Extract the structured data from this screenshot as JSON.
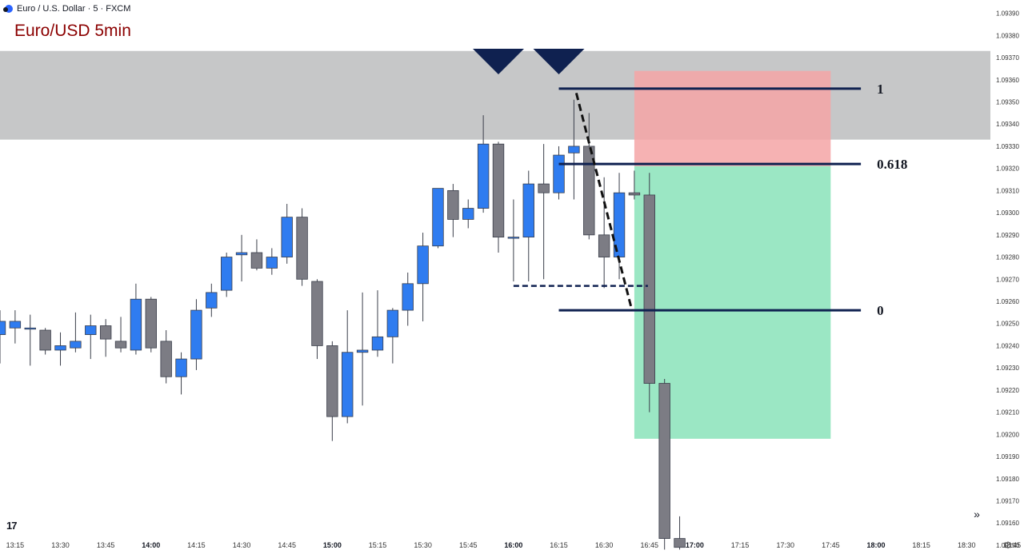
{
  "header": {
    "symbol": "Euro / U.S. Dollar · 5 · FXCM"
  },
  "title": "Euro/USD 5min",
  "chart_data": {
    "type": "candlestick",
    "x_ticks": [
      "13:15",
      "13:30",
      "13:45",
      "14:00",
      "14:15",
      "14:30",
      "14:45",
      "15:00",
      "15:15",
      "15:30",
      "15:45",
      "16:00",
      "16:15",
      "16:30",
      "16:45",
      "17:00",
      "17:15",
      "17:30",
      "17:45",
      "18:00",
      "18:15",
      "18:30",
      "18:45"
    ],
    "x_ticks_bold": [
      "14:00",
      "15:00",
      "16:00",
      "17:00",
      "18:00"
    ],
    "y_ticks": [
      "1.09390",
      "1.09380",
      "1.09370",
      "1.09360",
      "1.09350",
      "1.09340",
      "1.09330",
      "1.09320",
      "1.09310",
      "1.09300",
      "1.09290",
      "1.09280",
      "1.09270",
      "1.09260",
      "1.09250",
      "1.09240",
      "1.09230",
      "1.09220",
      "1.09210",
      "1.09200",
      "1.09190",
      "1.09180",
      "1.09170",
      "1.09160",
      "1.09150"
    ],
    "ylim": [
      1.09146,
      1.09396
    ],
    "xlim": [
      "13:10",
      "18:49"
    ],
    "up_color": "#2f7cf0",
    "down_color": "#7c7c84",
    "candles": [
      {
        "t": "13:10",
        "o": 1.09245,
        "h": 1.09256,
        "l": 1.09232,
        "c": 1.09251
      },
      {
        "t": "13:15",
        "o": 1.09248,
        "h": 1.09256,
        "l": 1.09241,
        "c": 1.09251
      },
      {
        "t": "13:20",
        "o": 1.09248,
        "h": 1.09254,
        "l": 1.09231,
        "c": 1.09248
      },
      {
        "t": "13:25",
        "o": 1.09247,
        "h": 1.09248,
        "l": 1.09236,
        "c": 1.09238
      },
      {
        "t": "13:30",
        "o": 1.09238,
        "h": 1.09246,
        "l": 1.09231,
        "c": 1.0924
      },
      {
        "t": "13:35",
        "o": 1.09239,
        "h": 1.09255,
        "l": 1.09237,
        "c": 1.09242
      },
      {
        "t": "13:40",
        "o": 1.09245,
        "h": 1.09254,
        "l": 1.09234,
        "c": 1.09249
      },
      {
        "t": "13:45",
        "o": 1.09249,
        "h": 1.09252,
        "l": 1.09235,
        "c": 1.09243
      },
      {
        "t": "13:50",
        "o": 1.09242,
        "h": 1.09253,
        "l": 1.09237,
        "c": 1.09239
      },
      {
        "t": "13:55",
        "o": 1.09238,
        "h": 1.09268,
        "l": 1.09236,
        "c": 1.09261
      },
      {
        "t": "14:00",
        "o": 1.09261,
        "h": 1.09262,
        "l": 1.09237,
        "c": 1.09239
      },
      {
        "t": "14:05",
        "o": 1.09242,
        "h": 1.09247,
        "l": 1.09223,
        "c": 1.09226
      },
      {
        "t": "14:10",
        "o": 1.09226,
        "h": 1.09237,
        "l": 1.09218,
        "c": 1.09234
      },
      {
        "t": "14:15",
        "o": 1.09234,
        "h": 1.09261,
        "l": 1.09229,
        "c": 1.09256
      },
      {
        "t": "14:20",
        "o": 1.09257,
        "h": 1.09268,
        "l": 1.09253,
        "c": 1.09264
      },
      {
        "t": "14:25",
        "o": 1.09265,
        "h": 1.09282,
        "l": 1.09262,
        "c": 1.0928
      },
      {
        "t": "14:30",
        "o": 1.09281,
        "h": 1.0929,
        "l": 1.09269,
        "c": 1.09282
      },
      {
        "t": "14:35",
        "o": 1.09282,
        "h": 1.09288,
        "l": 1.09274,
        "c": 1.09275
      },
      {
        "t": "14:40",
        "o": 1.09275,
        "h": 1.09284,
        "l": 1.09272,
        "c": 1.0928
      },
      {
        "t": "14:45",
        "o": 1.0928,
        "h": 1.09304,
        "l": 1.09277,
        "c": 1.09298
      },
      {
        "t": "14:50",
        "o": 1.09298,
        "h": 1.09302,
        "l": 1.09267,
        "c": 1.0927
      },
      {
        "t": "14:55",
        "o": 1.09269,
        "h": 1.0927,
        "l": 1.09234,
        "c": 1.0924
      },
      {
        "t": "15:00",
        "o": 1.0924,
        "h": 1.09242,
        "l": 1.09197,
        "c": 1.09208
      },
      {
        "t": "15:05",
        "o": 1.09208,
        "h": 1.09256,
        "l": 1.09205,
        "c": 1.09237
      },
      {
        "t": "15:10",
        "o": 1.09237,
        "h": 1.09264,
        "l": 1.09213,
        "c": 1.09238
      },
      {
        "t": "15:15",
        "o": 1.09238,
        "h": 1.09265,
        "l": 1.09235,
        "c": 1.09244
      },
      {
        "t": "15:20",
        "o": 1.09244,
        "h": 1.09257,
        "l": 1.09232,
        "c": 1.09256
      },
      {
        "t": "15:25",
        "o": 1.09256,
        "h": 1.09273,
        "l": 1.09249,
        "c": 1.09268
      },
      {
        "t": "15:30",
        "o": 1.09268,
        "h": 1.09291,
        "l": 1.09251,
        "c": 1.09285
      },
      {
        "t": "15:35",
        "o": 1.09285,
        "h": 1.09311,
        "l": 1.09284,
        "c": 1.09311
      },
      {
        "t": "15:40",
        "o": 1.0931,
        "h": 1.09313,
        "l": 1.09289,
        "c": 1.09297
      },
      {
        "t": "15:45",
        "o": 1.09297,
        "h": 1.09306,
        "l": 1.09293,
        "c": 1.09302
      },
      {
        "t": "15:50",
        "o": 1.09302,
        "h": 1.09344,
        "l": 1.093,
        "c": 1.09331
      },
      {
        "t": "15:55",
        "o": 1.09331,
        "h": 1.09332,
        "l": 1.09282,
        "c": 1.09289
      },
      {
        "t": "16:00",
        "o": 1.09289,
        "h": 1.09306,
        "l": 1.09269,
        "c": 1.09289
      },
      {
        "t": "16:05",
        "o": 1.09289,
        "h": 1.09319,
        "l": 1.09269,
        "c": 1.09313
      },
      {
        "t": "16:10",
        "o": 1.09313,
        "h": 1.09331,
        "l": 1.0927,
        "c": 1.09309
      },
      {
        "t": "16:15",
        "o": 1.09309,
        "h": 1.0933,
        "l": 1.09306,
        "c": 1.09326
      },
      {
        "t": "16:20",
        "o": 1.09327,
        "h": 1.09351,
        "l": 1.09306,
        "c": 1.0933
      },
      {
        "t": "16:25",
        "o": 1.0933,
        "h": 1.09345,
        "l": 1.09288,
        "c": 1.0929
      },
      {
        "t": "16:30",
        "o": 1.0929,
        "h": 1.09316,
        "l": 1.09266,
        "c": 1.0928
      },
      {
        "t": "16:35",
        "o": 1.0928,
        "h": 1.09318,
        "l": 1.0927,
        "c": 1.09309
      },
      {
        "t": "16:40",
        "o": 1.09309,
        "h": 1.09319,
        "l": 1.09306,
        "c": 1.09308
      },
      {
        "t": "16:45",
        "o": 1.09308,
        "h": 1.09318,
        "l": 1.0921,
        "c": 1.09223
      },
      {
        "t": "16:50",
        "o": 1.09223,
        "h": 1.09225,
        "l": 1.09148,
        "c": 1.09153
      },
      {
        "t": "16:55",
        "o": 1.09153,
        "h": 1.09163,
        "l": 1.09148,
        "c": 1.09149
      }
    ],
    "resistance_zone": {
      "from": 1.09333,
      "to": 1.09373,
      "color": "#c6c7c8"
    },
    "tops": [
      "15:55",
      "16:15"
    ],
    "fib_levels": [
      {
        "label": "1",
        "price": 1.09356
      },
      {
        "label": "0.618",
        "price": 1.09322
      },
      {
        "label": "0",
        "price": 1.09256
      }
    ],
    "fib_start": "16:15",
    "fib_end": "17:55",
    "position": {
      "start": "16:40",
      "end": "17:45",
      "stop_top": 1.09364,
      "entry": 1.09321,
      "target": 1.09198,
      "stop_color": "#f4a4a6",
      "target_color": "#96e6c1"
    },
    "neckline": {
      "from": "16:00",
      "to": "16:40",
      "price": 1.09267
    },
    "swing_line": {
      "from_t": "16:20",
      "from_p": 1.09354,
      "to_t": "16:40",
      "to_p": 1.09256
    }
  },
  "icons": {
    "logo": "tradingview-logo",
    "scroll": "double-chevron-right-icon",
    "settings": "gear-icon"
  }
}
